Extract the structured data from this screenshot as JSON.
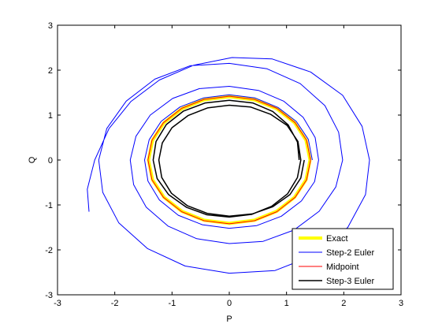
{
  "chart_data": {
    "type": "line",
    "title": "",
    "xlabel": "P",
    "ylabel": "Q",
    "xlim": [
      -3,
      3
    ],
    "ylim": [
      -3,
      3
    ],
    "xticks": [
      -3,
      -2,
      -1,
      0,
      1,
      2,
      3
    ],
    "yticks": [
      -3,
      -2,
      -1,
      0,
      1,
      2,
      3
    ],
    "grid": false,
    "legend_position": "bottom-right",
    "series": [
      {
        "name": "Exact",
        "color": "#ffff00",
        "points": [
          [
            1.41,
            0.0
          ],
          [
            1.34,
            0.44
          ],
          [
            1.14,
            0.83
          ],
          [
            0.83,
            1.14
          ],
          [
            0.44,
            1.34
          ],
          [
            0.0,
            1.41
          ],
          [
            -0.44,
            1.34
          ],
          [
            -0.83,
            1.14
          ],
          [
            -1.14,
            0.83
          ],
          [
            -1.34,
            0.44
          ],
          [
            -1.41,
            0.0
          ],
          [
            -1.34,
            -0.44
          ],
          [
            -1.14,
            -0.83
          ],
          [
            -0.83,
            -1.14
          ],
          [
            -0.44,
            -1.34
          ],
          [
            0.0,
            -1.41
          ],
          [
            0.44,
            -1.34
          ],
          [
            0.83,
            -1.14
          ],
          [
            1.14,
            -0.83
          ],
          [
            1.34,
            -0.44
          ],
          [
            1.41,
            0.0
          ]
        ]
      },
      {
        "name": "Step-2 Euler",
        "color": "#0000ff",
        "points": [
          [
            1.45,
            0.0
          ],
          [
            1.38,
            0.46
          ],
          [
            1.17,
            0.86
          ],
          [
            0.85,
            1.17
          ],
          [
            0.45,
            1.38
          ],
          [
            0.0,
            1.45
          ],
          [
            -0.45,
            1.38
          ],
          [
            -0.86,
            1.18
          ],
          [
            -1.19,
            0.86
          ],
          [
            -1.4,
            0.45
          ],
          [
            -1.48,
            0.0
          ],
          [
            -1.42,
            -0.47
          ],
          [
            -1.22,
            -0.89
          ],
          [
            -0.89,
            -1.23
          ],
          [
            -0.47,
            -1.44
          ],
          [
            0.0,
            -1.52
          ],
          [
            0.48,
            -1.46
          ],
          [
            0.91,
            -1.25
          ],
          [
            1.26,
            -0.91
          ],
          [
            1.49,
            -0.48
          ],
          [
            1.56,
            0.0
          ],
          [
            1.5,
            0.5
          ],
          [
            1.29,
            0.95
          ],
          [
            0.95,
            1.31
          ],
          [
            0.51,
            1.55
          ],
          [
            0.0,
            1.64
          ],
          [
            -0.52,
            1.59
          ],
          [
            -0.99,
            1.37
          ],
          [
            -1.38,
            1.0
          ],
          [
            -1.63,
            0.53
          ],
          [
            -1.73,
            0.0
          ],
          [
            -1.67,
            -0.55
          ],
          [
            -1.45,
            -1.05
          ],
          [
            -1.07,
            -1.47
          ],
          [
            -0.57,
            -1.75
          ],
          [
            0.0,
            -1.86
          ],
          [
            0.59,
            -1.81
          ],
          [
            1.13,
            -1.56
          ],
          [
            1.57,
            -1.14
          ],
          [
            1.86,
            -0.6
          ],
          [
            1.98,
            0.0
          ],
          [
            1.91,
            0.62
          ],
          [
            1.67,
            1.21
          ],
          [
            1.24,
            1.7
          ],
          [
            0.66,
            2.03
          ],
          [
            0.0,
            2.15
          ],
          [
            -0.68,
            2.1
          ],
          [
            -1.3,
            1.8
          ],
          [
            -1.8,
            1.31
          ],
          [
            -2.14,
            0.7
          ],
          [
            -2.28,
            0.0
          ],
          [
            -2.21,
            -0.72
          ],
          [
            -1.93,
            -1.4
          ],
          [
            -1.43,
            -1.97
          ],
          [
            -0.77,
            -2.36
          ],
          [
            0.0,
            -2.52
          ],
          [
            0.8,
            -2.46
          ],
          [
            1.52,
            -2.1
          ],
          [
            2.07,
            -1.5
          ],
          [
            2.38,
            -0.77
          ],
          [
            2.45,
            0.0
          ],
          [
            2.32,
            0.75
          ],
          [
            1.98,
            1.44
          ],
          [
            1.42,
            1.96
          ],
          [
            0.75,
            2.25
          ],
          [
            0.05,
            2.28
          ],
          [
            -0.62,
            2.11
          ],
          [
            -1.22,
            1.78
          ],
          [
            -1.72,
            1.3
          ],
          [
            -2.1,
            0.7
          ],
          [
            -2.35,
            0.0
          ],
          [
            -2.48,
            -0.65
          ],
          [
            -2.45,
            -1.15
          ]
        ]
      },
      {
        "name": "Midpoint",
        "color": "#ff0000",
        "points": [
          [
            1.42,
            0.0
          ],
          [
            1.35,
            0.44
          ],
          [
            1.15,
            0.83
          ],
          [
            0.83,
            1.15
          ],
          [
            0.44,
            1.35
          ],
          [
            0.0,
            1.42
          ],
          [
            -0.44,
            1.35
          ],
          [
            -0.83,
            1.15
          ],
          [
            -1.15,
            0.83
          ],
          [
            -1.35,
            0.44
          ],
          [
            -1.42,
            0.0
          ],
          [
            -1.35,
            -0.44
          ],
          [
            -1.15,
            -0.83
          ],
          [
            -0.83,
            -1.15
          ],
          [
            -0.44,
            -1.35
          ],
          [
            0.0,
            -1.42
          ],
          [
            0.44,
            -1.35
          ],
          [
            0.83,
            -1.15
          ],
          [
            1.15,
            -0.83
          ],
          [
            1.35,
            -0.44
          ],
          [
            1.42,
            0.0
          ]
        ]
      },
      {
        "name": "Step-3 Euler",
        "color": "#000000",
        "points": [
          [
            1.22,
            0.0
          ],
          [
            1.19,
            0.4
          ],
          [
            1.03,
            0.78
          ],
          [
            0.76,
            1.08
          ],
          [
            0.41,
            1.27
          ],
          [
            0.0,
            1.33
          ],
          [
            -0.42,
            1.27
          ],
          [
            -0.8,
            1.09
          ],
          [
            -1.1,
            0.79
          ],
          [
            -1.28,
            0.41
          ],
          [
            -1.33,
            0.0
          ],
          [
            -1.26,
            -0.41
          ],
          [
            -1.06,
            -0.77
          ],
          [
            -0.75,
            -1.05
          ],
          [
            -0.39,
            -1.22
          ],
          [
            0.0,
            -1.27
          ],
          [
            0.39,
            -1.21
          ],
          [
            0.74,
            -1.03
          ],
          [
            1.02,
            -0.75
          ],
          [
            1.19,
            -0.39
          ],
          [
            1.25,
            0.0
          ],
          [
            1.2,
            0.41
          ],
          [
            1.01,
            0.77
          ],
          [
            0.72,
            1.02
          ],
          [
            0.37,
            1.18
          ],
          [
            0.0,
            1.22
          ],
          [
            -0.38,
            1.16
          ],
          [
            -0.72,
            0.99
          ],
          [
            -1.0,
            0.72
          ],
          [
            -1.17,
            0.38
          ],
          [
            -1.23,
            0.0
          ],
          [
            -1.18,
            -0.39
          ],
          [
            -1.01,
            -0.74
          ],
          [
            -0.73,
            -1.02
          ],
          [
            -0.38,
            -1.19
          ],
          [
            0.0,
            -1.25
          ],
          [
            0.4,
            -1.2
          ],
          [
            0.76,
            -1.04
          ],
          [
            1.06,
            -0.77
          ],
          [
            1.25,
            -0.4
          ],
          [
            1.31,
            0.0
          ]
        ]
      }
    ]
  }
}
